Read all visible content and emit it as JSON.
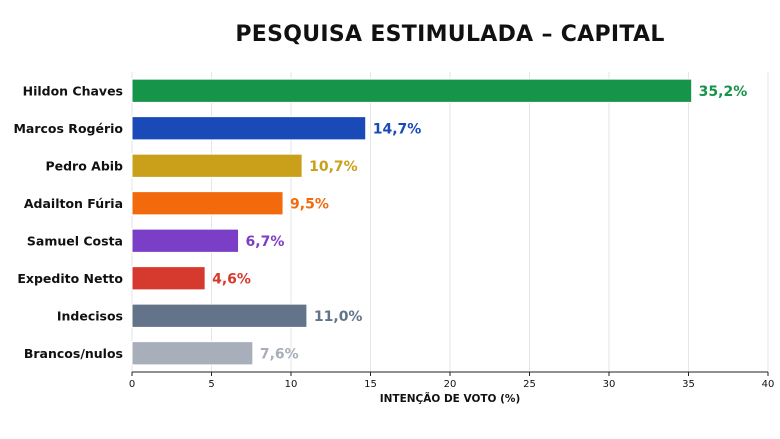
{
  "chart_data": {
    "type": "bar",
    "orientation": "horizontal",
    "title": "PESQUISA ESTIMULADA – CAPITAL",
    "xlabel": "INTENÇÃO DE VOTO (%)",
    "ylabel": "",
    "xlim": [
      0,
      40
    ],
    "xticks": [
      "0",
      "5",
      "10",
      "15",
      "20",
      "25",
      "30",
      "35",
      "40"
    ],
    "grid": "vertical",
    "legend": "none",
    "categories": [
      "Hildon Chaves",
      "Marcos Rogério",
      "Pedro Abib",
      "Adailton Fúria",
      "Samuel Costa",
      "Expedito Netto",
      "Indecisos",
      "Brancos/nulos"
    ],
    "values": [
      35.2,
      14.7,
      10.7,
      9.5,
      6.7,
      4.6,
      11.0,
      7.6
    ],
    "value_labels": [
      "35,2%",
      "14,7%",
      "10,7%",
      "9,5%",
      "6,7%",
      "4,6%",
      "11,0%",
      "7,6%"
    ],
    "colors": [
      "#16944a",
      "#1a49b8",
      "#caa01a",
      "#f26a0c",
      "#7a3fc6",
      "#d63a2f",
      "#637389",
      "#a8afbb"
    ]
  }
}
